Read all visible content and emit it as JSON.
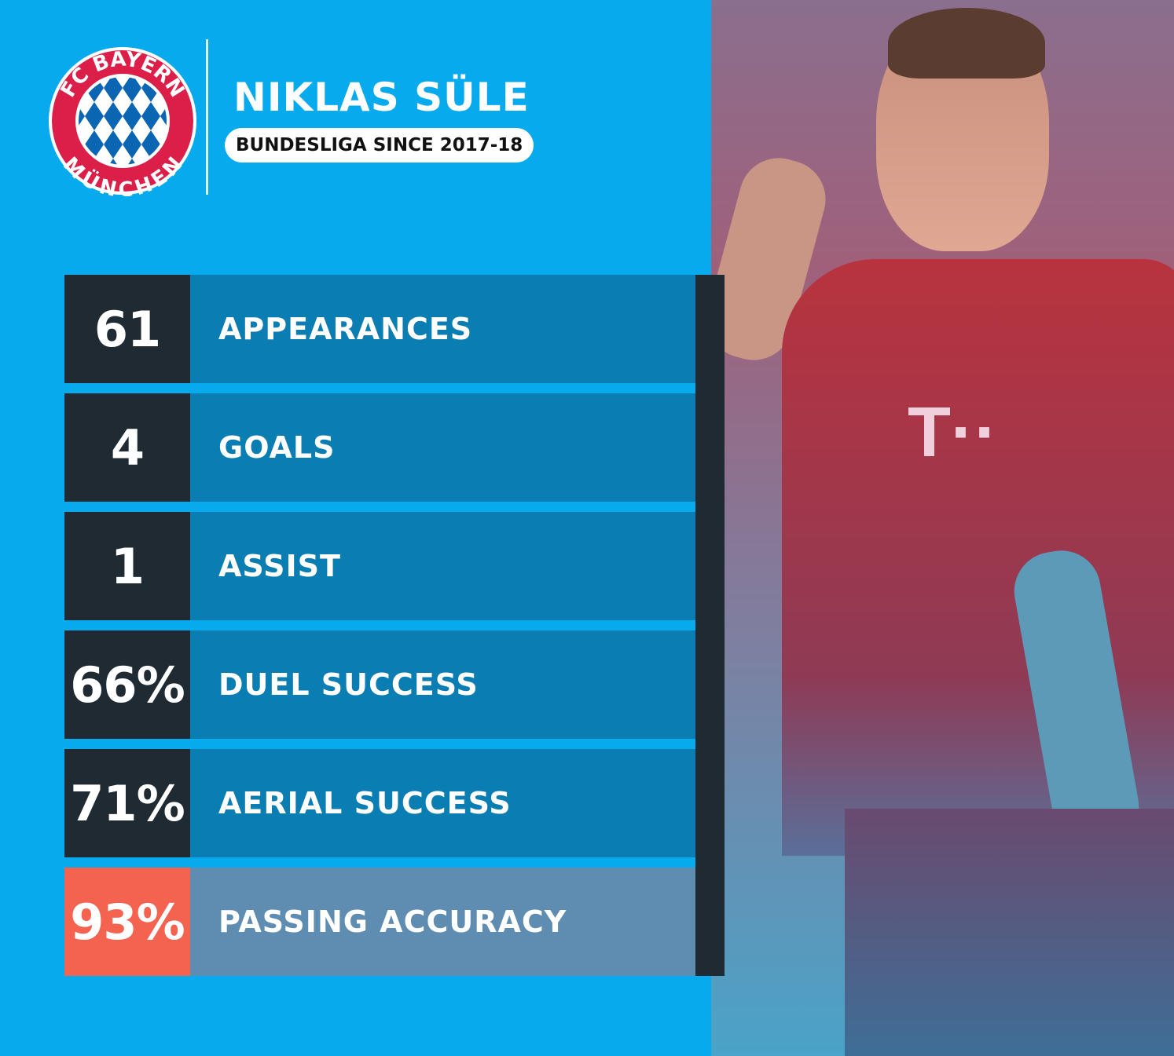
{
  "header": {
    "player_name": "NIKLAS SÜLE",
    "subtitle": "BUNDESLIGA SINCE 2017-18",
    "club_logo_text": "FC BAYERN MÜNCHEN"
  },
  "stats": [
    {
      "value": "61",
      "label": "APPEARANCES"
    },
    {
      "value": "4",
      "label": "GOALS"
    },
    {
      "value": "1",
      "label": "ASSIST"
    },
    {
      "value": "66%",
      "label": "DUEL SUCCESS"
    },
    {
      "value": "71%",
      "label": "AERIAL SUCCESS"
    },
    {
      "value": "93%",
      "label": "PASSING ACCURACY",
      "highlight": true
    }
  ],
  "colors": {
    "background": "#06aaed",
    "dark": "#1f2a33",
    "label": "#0a7db2",
    "highlight": "#f4634f",
    "highlight_label": "#5f8db2"
  }
}
